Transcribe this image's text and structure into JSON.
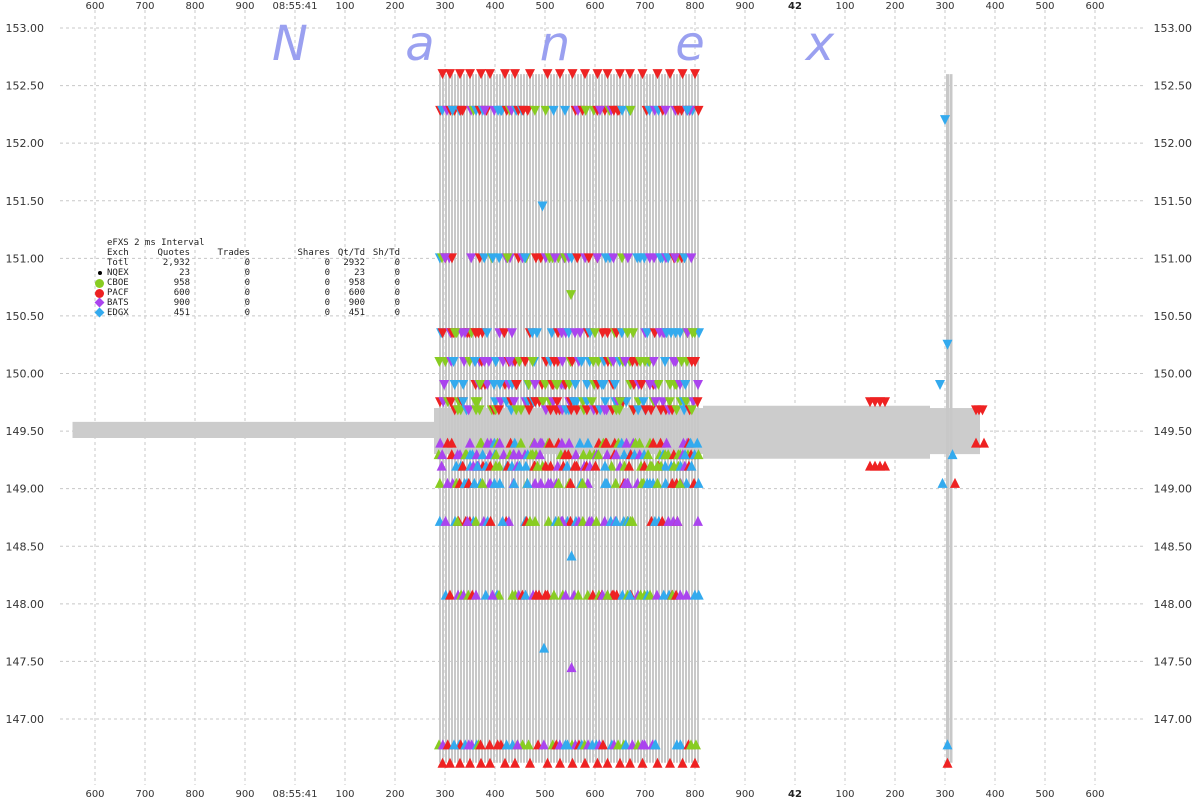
{
  "watermark": [
    "N",
    "a",
    "n",
    "e",
    "x"
  ],
  "stats": {
    "title": "eFXS 2 ms Interval",
    "columns": [
      "Exch",
      "Quotes",
      "Trades",
      "Shares",
      "Qt/Td",
      "Sh/Td"
    ],
    "rows": [
      {
        "exch": "Totl",
        "quotes": "2,932",
        "trades": "0",
        "shares": "0",
        "qt_td": "2932",
        "sh_td": "0",
        "color": "",
        "marker": "none"
      },
      {
        "exch": "NQEX",
        "quotes": "23",
        "trades": "0",
        "shares": "0",
        "qt_td": "23",
        "sh_td": "0",
        "color": "#000000",
        "marker": "dot"
      },
      {
        "exch": "CBOE",
        "quotes": "958",
        "trades": "0",
        "shares": "0",
        "qt_td": "958",
        "sh_td": "0",
        "color": "#88cc22",
        "marker": "circle"
      },
      {
        "exch": "PACF",
        "quotes": "600",
        "trades": "0",
        "shares": "0",
        "qt_td": "600",
        "sh_td": "0",
        "color": "#ee2222",
        "marker": "circle"
      },
      {
        "exch": "BATS",
        "quotes": "900",
        "trades": "0",
        "shares": "0",
        "qt_td": "900",
        "sh_td": "0",
        "color": "#aa44ee",
        "marker": "diamond"
      },
      {
        "exch": "EDGX",
        "quotes": "451",
        "trades": "0",
        "shares": "0",
        "qt_td": "451",
        "sh_td": "0",
        "color": "#33aaee",
        "marker": "diamond"
      }
    ]
  },
  "chart_data": {
    "type": "scatter",
    "title": "",
    "xlabel": "",
    "ylabel": "",
    "ylim": [
      146.6,
      153.1
    ],
    "y_ticks": [
      "153.00",
      "152.50",
      "152.00",
      "151.50",
      "151.00",
      "150.50",
      "150.00",
      "149.50",
      "149.00",
      "148.50",
      "148.00",
      "147.50",
      "147.00"
    ],
    "x_tick_labels": [
      "600",
      "700",
      "800",
      "900",
      "08:55:41",
      "100",
      "200",
      "300",
      "400",
      "500",
      "600",
      "700",
      "800",
      "900",
      "42",
      "100",
      "200",
      "300",
      "400",
      "500",
      "600"
    ],
    "x_tick_bold": [
      "42"
    ],
    "x_range_ms": [
      41560,
      42130
    ],
    "x_ticks_ms": [
      41600,
      41700,
      41800,
      41900,
      42000,
      42100,
      42200,
      42300,
      42400,
      42500,
      42600,
      42700,
      42800,
      42900,
      43000,
      43100,
      43200,
      43300,
      43400,
      43500,
      43600
    ],
    "grid": true,
    "colors": {
      "PACF": "#ee2222",
      "BATS": "#aa44ee",
      "EDGX": "#33aaee",
      "CBOE": "#88cc22",
      "NBBO": "#cccccc"
    },
    "nbbo_band": [
      {
        "x_start_ms": 41555,
        "x_end_ms": 42278,
        "bid": 149.44,
        "ask": 149.58
      },
      {
        "x_start_ms": 42278,
        "x_end_ms": 42816,
        "bid": 149.3,
        "ask": 149.7
      },
      {
        "x_start_ms": 42816,
        "x_end_ms": 43270,
        "bid": 149.26,
        "ask": 149.72
      },
      {
        "x_start_ms": 43270,
        "x_end_ms": 43370,
        "bid": 149.3,
        "ask": 149.7
      }
    ],
    "quote_burst": {
      "x_start_ms": 42290,
      "x_end_ms": 42810,
      "second_burst_ms": [
        43305,
        43312
      ]
    },
    "ask_levels": [
      152.6,
      152.28,
      151.0,
      150.35,
      150.1,
      149.9,
      149.75,
      149.68
    ],
    "bid_levels": [
      149.4,
      149.3,
      149.2,
      149.05,
      148.72,
      148.08,
      146.78,
      146.62
    ],
    "series": [
      {
        "name": "PACF",
        "side": "ask",
        "x_ms": [
          42295,
          42310,
          42330,
          42350,
          42372,
          42390,
          42420,
          42440,
          42470,
          42505,
          42530,
          42555,
          42580,
          42605,
          42625,
          42650,
          42670,
          42695,
          42725,
          42750,
          42775,
          42800
        ],
        "y": [
          152.6,
          152.6,
          152.6,
          152.6,
          152.6,
          152.6,
          152.6,
          152.6,
          152.6,
          152.6,
          152.6,
          152.6,
          152.6,
          152.6,
          152.6,
          152.6,
          152.6,
          152.6,
          152.6,
          152.6,
          152.6,
          152.6
        ]
      },
      {
        "name": "PACF",
        "side": "bid",
        "x_ms": [
          42295,
          42310,
          42330,
          42350,
          42372,
          42390,
          42420,
          42440,
          42470,
          42505,
          42530,
          42555,
          42580,
          42605,
          42625,
          42650,
          42670,
          42695,
          42725,
          42750,
          42775,
          42800
        ],
        "y": [
          146.62,
          146.62,
          146.62,
          146.62,
          146.62,
          146.62,
          146.62,
          146.62,
          146.62,
          146.62,
          146.62,
          146.62,
          146.62,
          146.62,
          146.62,
          146.62,
          146.62,
          146.62,
          146.62,
          146.62,
          146.62,
          146.62
        ]
      },
      {
        "name": "BATS",
        "side": "ask",
        "x_ms": [
          42300,
          42340,
          42380,
          42430,
          42480,
          42520,
          42560,
          42610,
          42660,
          42710,
          42760,
          42790
        ],
        "y": [
          151.0,
          150.35,
          152.28,
          150.1,
          149.9,
          151.0,
          150.35,
          152.28,
          150.1,
          149.9,
          151.0,
          152.28
        ]
      },
      {
        "name": "EDGX",
        "side": "ask",
        "x_ms": [
          42315,
          42360,
          42410,
          42460,
          42495,
          42540,
          42590,
          42640,
          42690,
          42740,
          42785
        ],
        "y": [
          152.28,
          150.1,
          149.9,
          151.0,
          151.45,
          152.28,
          150.35,
          149.9,
          151.0,
          150.1,
          152.28
        ]
      },
      {
        "name": "CBOE",
        "side": "ask",
        "x_ms": [
          42320,
          42370,
          42425,
          42475,
          42525,
          42552,
          42600,
          42650,
          42700,
          42750,
          42795
        ],
        "y": [
          150.35,
          149.9,
          151.0,
          150.1,
          149.9,
          150.68,
          150.35,
          149.75,
          150.1,
          149.9,
          150.35
        ]
      },
      {
        "name": "BATS",
        "side": "bid",
        "x_ms": [
          42305,
          42345,
          42395,
          42445,
          42490,
          42535,
          42553,
          42615,
          42665,
          42715,
          42765
        ],
        "y": [
          149.05,
          148.72,
          148.08,
          146.78,
          149.3,
          148.72,
          147.45,
          148.08,
          149.05,
          146.78,
          148.72
        ]
      },
      {
        "name": "EDGX",
        "side": "bid",
        "x_ms": [
          42318,
          42365,
          42415,
          42465,
          42498,
          42545,
          42553,
          42620,
          42670,
          42720,
          42780
        ],
        "y": [
          146.78,
          149.2,
          148.72,
          149.05,
          147.62,
          146.78,
          148.42,
          149.2,
          148.08,
          146.78,
          149.3
        ]
      },
      {
        "name": "CBOE",
        "side": "bid",
        "x_ms": [
          42325,
          42375,
          42435,
          42485,
          42527,
          42575,
          42625,
          42675,
          42725,
          42770
        ],
        "y": [
          148.72,
          149.05,
          148.08,
          149.2,
          148.72,
          149.05,
          148.08,
          148.72,
          149.2,
          149.05
        ]
      },
      {
        "name": "PACF",
        "side": "ask",
        "x_ms": [
          42805,
          43150,
          43160,
          43170,
          43180,
          43362,
          43368,
          43375
        ],
        "y": [
          149.75,
          149.75,
          149.75,
          149.75,
          149.75,
          149.68,
          149.68,
          149.68
        ]
      },
      {
        "name": "PACF",
        "side": "bid",
        "x_ms": [
          43150,
          43160,
          43170,
          43180,
          43305,
          43320,
          43362,
          43378
        ],
        "y": [
          149.2,
          149.2,
          149.2,
          149.2,
          146.62,
          149.05,
          149.4,
          149.4
        ]
      },
      {
        "name": "EDGX",
        "side": "ask",
        "x_ms": [
          43290,
          43300,
          43305
        ],
        "y": [
          149.9,
          152.2,
          150.25
        ]
      },
      {
        "name": "EDGX",
        "side": "bid",
        "x_ms": [
          43295,
          43305,
          43315
        ],
        "y": [
          149.05,
          146.78,
          149.3
        ]
      }
    ]
  }
}
